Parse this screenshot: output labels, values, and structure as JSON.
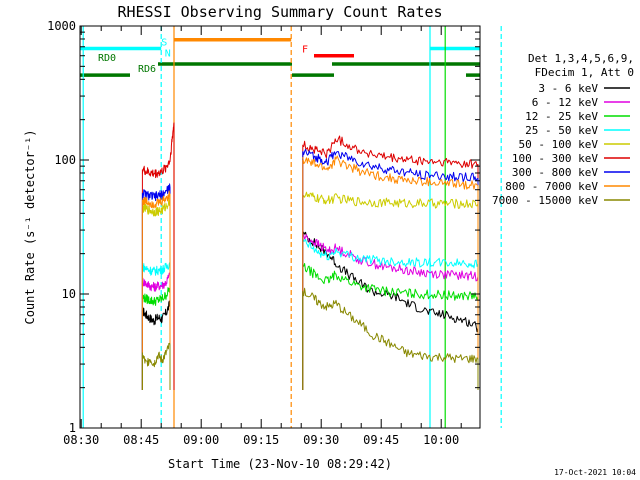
{
  "chart_data": {
    "type": "line",
    "title": "RHESSI Observing Summary Count Rates",
    "xlabel": "Start Time (23-Nov-10 08:29:42)",
    "ylabel": "Count Rate (s⁻¹ detector⁻¹)",
    "y_scale": "log",
    "ylim": [
      1,
      1000
    ],
    "xlim_minutes": [
      0,
      100
    ],
    "x_tick_labels": [
      "08:30",
      "08:45",
      "09:00",
      "09:15",
      "09:30",
      "09:45",
      "10:00"
    ],
    "y_tick_labels": [
      "1",
      "10",
      "100",
      "1000"
    ],
    "legend_header": [
      "Det 1,3,4,5,6,9,",
      "FDecim 1, Att 0"
    ],
    "footer_date": "17-Oct-2021 10:04",
    "grid": false,
    "legend_position": "right-outside",
    "series": [
      {
        "name": "3 - 6 keV",
        "color": "#000000",
        "segments": [
          {
            "x": [
              15.6,
              16.5,
              17.5,
              18.5,
              19.5,
              20.5,
              21.5,
              22.5
            ],
            "y": [
              7.5,
              7.0,
              6.6,
              6.3,
              6.7,
              6.5,
              7.2,
              8.5
            ]
          },
          {
            "x": [
              55.7,
              58,
              60,
              62,
              64,
              67,
              70,
              73,
              76,
              79,
              82,
              85,
              88,
              91,
              94,
              97,
              99.5
            ],
            "y": [
              28,
              25,
              22,
              20,
              17,
              14,
              12,
              10.5,
              10,
              9.5,
              8.5,
              7.8,
              7.2,
              7.0,
              6.6,
              6.2,
              5.6
            ]
          }
        ]
      },
      {
        "name": "6 - 12 keV",
        "color": "#e000e0",
        "segments": [
          {
            "x": [
              15.6,
              16.5,
              17.5,
              18.5,
              19.5,
              20.5,
              21.5,
              22.5
            ],
            "y": [
              12.5,
              12.0,
              11.5,
              11.3,
              11.5,
              11.6,
              12.2,
              14
            ]
          },
          {
            "x": [
              55.7,
              58,
              60,
              62,
              64,
              67,
              70,
              73,
              76,
              79,
              82,
              85,
              88,
              91,
              94,
              97,
              99.5
            ],
            "y": [
              27,
              25,
              23,
              21,
              22,
              20,
              18,
              17,
              16,
              15.5,
              15,
              14.5,
              14.3,
              14,
              13.8,
              13.7,
              13.5
            ]
          }
        ]
      },
      {
        "name": "12 - 25 keV",
        "color": "#00dd00",
        "segments": [
          {
            "x": [
              15.6,
              16.5,
              17.5,
              18.5,
              19.5,
              20.5,
              21.5,
              22.5
            ],
            "y": [
              9.5,
              9.2,
              9.0,
              8.8,
              9.0,
              9.2,
              9.8,
              11
            ]
          },
          {
            "x": [
              55.7,
              58,
              60,
              62,
              64,
              67,
              70,
              73,
              76,
              79,
              82,
              85,
              88,
              91,
              94,
              97,
              99.5
            ],
            "y": [
              16,
              14.5,
              13,
              12.5,
              14,
              12.5,
              11.5,
              11,
              10.5,
              10.3,
              10.1,
              10,
              9.9,
              9.8,
              9.7,
              9.7,
              9.6
            ]
          }
        ]
      },
      {
        "name": "25 - 50 keV",
        "color": "#00ffff",
        "segments": [
          {
            "x": [
              15.6,
              16.5,
              17.5,
              18.5,
              19.5,
              20.5,
              21.5,
              22.5
            ],
            "y": [
              16,
              15.5,
              15,
              14.8,
              15,
              15.2,
              15.8,
              17
            ]
          },
          {
            "x": [
              55.7,
              58,
              60,
              62,
              64,
              67,
              70,
              73,
              76,
              79,
              82,
              85,
              88,
              91,
              94,
              97,
              99.5
            ],
            "y": [
              25,
              22,
              20,
              19,
              21,
              19.5,
              18.5,
              18,
              17.7,
              17.5,
              17.3,
              17.2,
              17.1,
              17,
              17,
              16.9,
              16.8
            ]
          }
        ]
      },
      {
        "name": "50 - 100 keV",
        "color": "#cccc00",
        "segments": [
          {
            "x": [
              15.6,
              16.5,
              17.5,
              18.5,
              19.5,
              20.5,
              21.5,
              22.5
            ],
            "y": [
              44,
              43,
              42,
              41,
              41.5,
              42,
              45,
              50
            ]
          },
          {
            "x": [
              55.7,
              58,
              60,
              62,
              64,
              67,
              70,
              73,
              76,
              79,
              82,
              85,
              88,
              91,
              94,
              97,
              99.5
            ],
            "y": [
              55,
              53,
              51,
              50,
              52,
              50,
              49,
              48.5,
              48,
              47.8,
              47.6,
              47.5,
              47.4,
              47.3,
              47.2,
              47.1,
              47
            ]
          }
        ]
      },
      {
        "name": "100 - 300 keV",
        "color": "#dd0000",
        "segments": [
          {
            "x": [
              15.6,
              16.5,
              17.5,
              18.5,
              19.5,
              20.5,
              21.5,
              22.5,
              23.0,
              23.5
            ],
            "y": [
              85,
              82,
              80,
              79,
              80,
              82,
              88,
              100,
              140,
              190
            ]
          },
          {
            "x": [
              55.7,
              58,
              60,
              62,
              64,
              67,
              70,
              73,
              76,
              79,
              82,
              85,
              88,
              91,
              94,
              97,
              99.5
            ],
            "y": [
              130,
              122,
              115,
              112,
              145,
              130,
              118,
              110,
              105,
              102,
              100,
              98,
              97,
              96,
              95,
              94,
              93
            ]
          }
        ]
      },
      {
        "name": "300 - 800 keV",
        "color": "#0000ee",
        "segments": [
          {
            "x": [
              15.6,
              16.5,
              17.5,
              18.5,
              19.5,
              20.5,
              21.5,
              22.5
            ],
            "y": [
              57,
              55,
              54,
              53,
              54,
              55,
              58,
              63
            ]
          },
          {
            "x": [
              55.7,
              58,
              60,
              62,
              64,
              67,
              70,
              73,
              76,
              79,
              82,
              85,
              88,
              91,
              94,
              97,
              99.5
            ],
            "y": [
              115,
              108,
              102,
              98,
              115,
              104,
              96,
              90,
              86,
              83,
              80,
              78,
              77,
              76,
              75,
              74,
              73
            ]
          }
        ]
      },
      {
        "name": "800 - 7000 keV",
        "color": "#ff8800",
        "segments": [
          {
            "x": [
              15.6,
              16.5,
              17.5,
              18.5,
              19.5,
              20.5,
              21.5,
              22.5
            ],
            "y": [
              50,
              49,
              48,
              47,
              48,
              49,
              52,
              56
            ]
          },
          {
            "x": [
              55.7,
              58,
              60,
              62,
              64,
              67,
              70,
              73,
              76,
              79,
              82,
              85,
              88,
              91,
              94,
              97,
              99.5
            ],
            "y": [
              100,
              95,
              90,
              86,
              100,
              90,
              83,
              78,
              75,
              72,
              70,
              69,
              68,
              67,
              66,
              65.5,
              65
            ]
          }
        ]
      },
      {
        "name": "7000 - 15000 keV",
        "color": "#888800",
        "segments": [
          {
            "x": [
              15.6,
              16.5,
              17.5,
              18.5,
              19.5,
              20.5,
              21.5,
              22.5
            ],
            "y": [
              3.5,
              3.0,
              3.3,
              3.0,
              3.5,
              3.2,
              3.6,
              4.2
            ]
          },
          {
            "x": [
              55.7,
              58,
              60,
              62,
              64,
              67,
              70,
              73,
              76,
              79,
              82,
              85,
              88,
              91,
              94,
              97,
              99.5
            ],
            "y": [
              10.5,
              9.5,
              8.5,
              8.0,
              8.5,
              7.0,
              6.0,
              5.0,
              4.5,
              4.0,
              3.6,
              3.5,
              3.4,
              3.4,
              3.3,
              3.3,
              3.3
            ]
          }
        ]
      }
    ],
    "flag_bars": [
      {
        "name": "SAA",
        "label": "S",
        "color": "#00ffff",
        "y": 680,
        "segments": [
          [
            0,
            20.3
          ],
          [
            87.5,
            100
          ]
        ],
        "label_x": 20.3
      },
      {
        "name": "Night",
        "label": "N",
        "color": "#00ffff",
        "y": 560,
        "segments": [],
        "label_x": 21.2
      },
      {
        "name": "Attenuator",
        "label": "",
        "color": "#ff8800",
        "y": 790,
        "segments": [
          [
            23.5,
            52.8
          ]
        ],
        "label_x": 0
      },
      {
        "name": "Flare",
        "label": "F",
        "color": "#ff0000",
        "y": 600,
        "segments": [
          [
            58.5,
            68.5
          ]
        ],
        "label_x": 55.5
      },
      {
        "name": "RD0",
        "label": "RD0",
        "color": "#007700",
        "y": 520,
        "segments": [
          [
            19.5,
            53
          ],
          [
            63,
            100
          ]
        ],
        "label_x": 4.5
      },
      {
        "name": "RD6",
        "label": "RD6",
        "color": "#007700",
        "y": 430,
        "segments": [
          [
            0,
            12.5
          ],
          [
            53,
            63.5
          ],
          [
            96.5,
            100
          ]
        ],
        "label_x": 14.5
      }
    ],
    "vlines": [
      {
        "x": 0.8,
        "color": "#00ffff",
        "style": "solid"
      },
      {
        "x": 20.3,
        "color": "#00ffff",
        "style": "dashed"
      },
      {
        "x": 23.5,
        "color": "#ff8800",
        "style": "solid"
      },
      {
        "x": 52.8,
        "color": "#ff8800",
        "style": "dashed"
      },
      {
        "x": 87.5,
        "color": "#00ffff",
        "style": "solid"
      },
      {
        "x": 91.3,
        "color": "#00dd00",
        "style": "solid"
      },
      {
        "x": 105.3,
        "color": "#00ffff",
        "style": "dashed"
      }
    ]
  }
}
